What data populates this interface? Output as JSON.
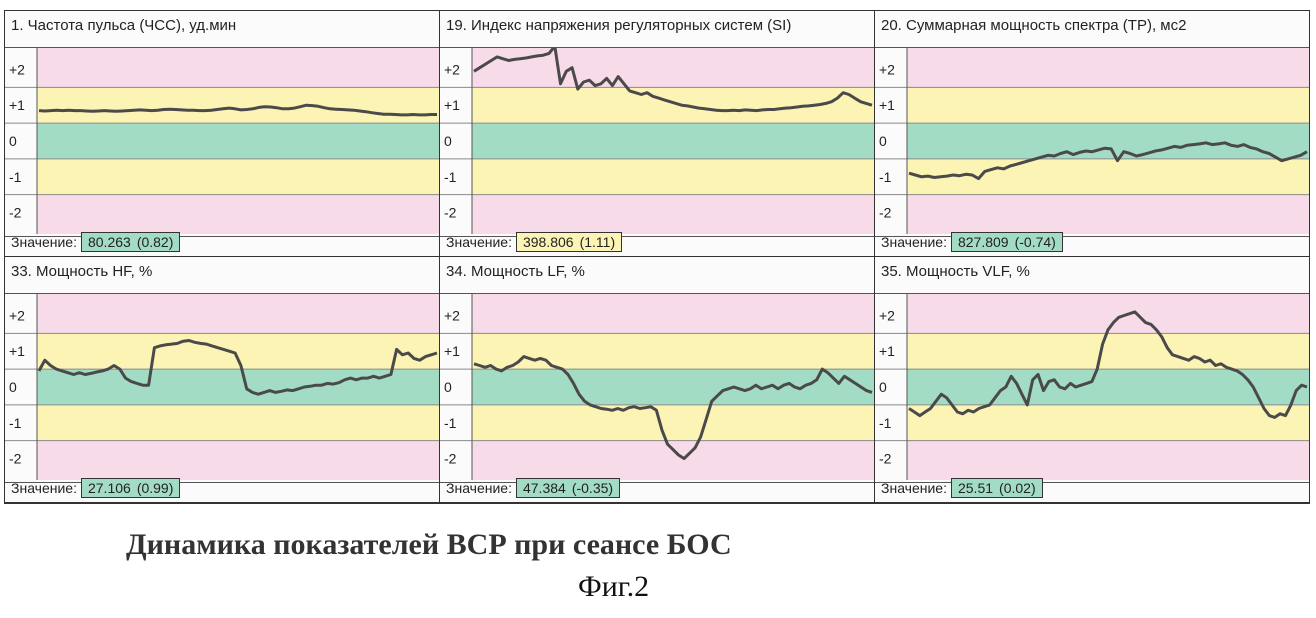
{
  "value_label": "Значение:",
  "colors": {
    "zone_green": "#a3dcc4",
    "zone_yellow": "#fbf4b4",
    "zone_pink": "#f8dbe9",
    "line": "#4a4a4a",
    "box_green": "#a3dcc4",
    "box_yellow": "#fbf4b4"
  },
  "caption": "Динамика показателей ВСР при сеансе БОС",
  "figure_label": "Фиг.2",
  "chart_data": [
    {
      "type": "line",
      "title": "1. Частота пульса (ЧСС), уд.мин",
      "y_ticks": [
        "+2",
        "+1",
        "0",
        "-1",
        "-2"
      ],
      "ylim": [
        -2.6,
        2.6
      ],
      "value": "80.263",
      "score": "(0.82)",
      "box_color": "green",
      "series": [
        {
          "values": [
            0.85,
            0.84,
            0.85,
            0.86,
            0.85,
            0.86,
            0.85,
            0.85,
            0.84,
            0.83,
            0.84,
            0.85,
            0.84,
            0.83,
            0.84,
            0.85,
            0.86,
            0.87,
            0.86,
            0.85,
            0.86,
            0.88,
            0.89,
            0.88,
            0.87,
            0.86,
            0.86,
            0.85,
            0.85,
            0.86,
            0.88,
            0.9,
            0.92,
            0.9,
            0.87,
            0.88,
            0.9,
            0.94,
            0.96,
            0.95,
            0.93,
            0.9,
            0.9,
            0.92,
            0.96,
            1.0,
            0.99,
            0.97,
            0.93,
            0.9,
            0.89,
            0.88,
            0.87,
            0.86,
            0.84,
            0.82,
            0.79,
            0.77,
            0.75,
            0.75,
            0.74,
            0.73,
            0.73,
            0.74,
            0.73,
            0.73,
            0.74,
            0.74
          ]
        }
      ]
    },
    {
      "type": "line",
      "title": "19. Индекс напряжения регуляторных систем (SI)",
      "y_ticks": [
        "+2",
        "+1",
        "0",
        "-1",
        "-2"
      ],
      "ylim": [
        -2.6,
        2.6
      ],
      "value": "398.806",
      "score": "(1.11)",
      "box_color": "yellow",
      "series": [
        {
          "values": [
            1.95,
            2.05,
            2.15,
            2.25,
            2.35,
            2.3,
            2.25,
            2.28,
            2.3,
            2.32,
            2.35,
            2.38,
            2.4,
            2.45,
            2.65,
            1.6,
            1.95,
            2.05,
            1.45,
            1.65,
            1.7,
            1.55,
            1.6,
            1.75,
            1.55,
            1.8,
            1.6,
            1.4,
            1.35,
            1.3,
            1.35,
            1.25,
            1.2,
            1.15,
            1.1,
            1.05,
            1.0,
            0.98,
            0.95,
            0.92,
            0.9,
            0.88,
            0.86,
            0.85,
            0.85,
            0.86,
            0.85,
            0.87,
            0.86,
            0.85,
            0.87,
            0.88,
            0.88,
            0.9,
            0.92,
            0.93,
            0.95,
            0.97,
            0.98,
            1.0,
            1.02,
            1.05,
            1.1,
            1.2,
            1.35,
            1.3,
            1.2,
            1.1,
            1.05,
            1.0
          ]
        }
      ]
    },
    {
      "type": "line",
      "title": "20. Суммарная мощность спектра (ТР), мс2",
      "y_ticks": [
        "+2",
        "+1",
        "0",
        "-1",
        "-2"
      ],
      "ylim": [
        -2.6,
        2.6
      ],
      "value": "827.809",
      "score": "(-0.74)",
      "box_color": "green",
      "series": [
        {
          "values": [
            -0.9,
            -0.95,
            -1.0,
            -0.98,
            -1.02,
            -1.0,
            -0.98,
            -0.95,
            -0.97,
            -0.93,
            -0.95,
            -1.05,
            -0.85,
            -0.8,
            -0.75,
            -0.78,
            -0.7,
            -0.65,
            -0.6,
            -0.55,
            -0.5,
            -0.45,
            -0.4,
            -0.42,
            -0.35,
            -0.3,
            -0.38,
            -0.32,
            -0.28,
            -0.3,
            -0.25,
            -0.2,
            -0.22,
            -0.55,
            -0.3,
            -0.35,
            -0.42,
            -0.38,
            -0.33,
            -0.28,
            -0.25,
            -0.2,
            -0.15,
            -0.18,
            -0.12,
            -0.1,
            -0.08,
            -0.05,
            -0.1,
            -0.08,
            -0.05,
            -0.12,
            -0.15,
            -0.1,
            -0.18,
            -0.22,
            -0.3,
            -0.35,
            -0.45,
            -0.55,
            -0.5,
            -0.45,
            -0.4,
            -0.3
          ]
        }
      ]
    },
    {
      "type": "line",
      "title": "33. Мощность HF, %",
      "y_ticks": [
        "+2",
        "+1",
        "0",
        "-1",
        "-2"
      ],
      "ylim": [
        -2.6,
        2.6
      ],
      "value": "27.106",
      "score": "(0.99)",
      "box_color": "green",
      "series": [
        {
          "values": [
            0.45,
            0.75,
            0.6,
            0.5,
            0.45,
            0.4,
            0.35,
            0.4,
            0.35,
            0.38,
            0.42,
            0.45,
            0.5,
            0.6,
            0.5,
            0.25,
            0.15,
            0.1,
            0.05,
            0.05,
            1.1,
            1.15,
            1.18,
            1.2,
            1.22,
            1.28,
            1.3,
            1.25,
            1.22,
            1.2,
            1.15,
            1.1,
            1.05,
            1.0,
            0.95,
            0.6,
            -0.05,
            -0.15,
            -0.2,
            -0.15,
            -0.1,
            -0.15,
            -0.12,
            -0.08,
            -0.1,
            -0.05,
            0.0,
            0.02,
            0.05,
            0.05,
            0.1,
            0.08,
            0.12,
            0.2,
            0.25,
            0.2,
            0.25,
            0.25,
            0.3,
            0.25,
            0.3,
            0.35,
            1.05,
            0.9,
            0.95,
            0.8,
            0.75,
            0.85,
            0.9,
            0.95
          ]
        }
      ]
    },
    {
      "type": "line",
      "title": "34. Мощность LF, %",
      "y_ticks": [
        "+2",
        "+1",
        "0",
        "-1",
        "-2"
      ],
      "ylim": [
        -2.6,
        2.6
      ],
      "value": "47.384",
      "score": "(-0.35)",
      "box_color": "green",
      "series": [
        {
          "values": [
            0.65,
            0.6,
            0.55,
            0.6,
            0.5,
            0.45,
            0.55,
            0.6,
            0.7,
            0.85,
            0.8,
            0.75,
            0.8,
            0.75,
            0.6,
            0.55,
            0.5,
            0.35,
            0.1,
            -0.2,
            -0.4,
            -0.5,
            -0.55,
            -0.6,
            -0.62,
            -0.65,
            -0.6,
            -0.65,
            -0.58,
            -0.55,
            -0.6,
            -0.58,
            -0.55,
            -0.65,
            -1.2,
            -1.6,
            -1.75,
            -1.9,
            -2.0,
            -1.85,
            -1.7,
            -1.4,
            -0.9,
            -0.4,
            -0.25,
            -0.1,
            -0.05,
            0.0,
            -0.05,
            -0.1,
            -0.05,
            0.05,
            -0.05,
            0.0,
            0.05,
            -0.05,
            0.05,
            0.1,
            0.0,
            -0.05,
            0.05,
            0.1,
            0.2,
            0.5,
            0.4,
            0.25,
            0.1,
            0.3,
            0.2,
            0.1,
            0.0,
            -0.1,
            -0.15
          ]
        }
      ]
    },
    {
      "type": "line",
      "title": "35. Мощность VLF, %",
      "y_ticks": [
        "+2",
        "+1",
        "0",
        "-1",
        "-2"
      ],
      "ylim": [
        -2.6,
        2.6
      ],
      "value": "25.51",
      "score": "(0.02)",
      "box_color": "green",
      "series": [
        {
          "values": [
            -0.6,
            -0.7,
            -0.8,
            -0.7,
            -0.6,
            -0.4,
            -0.2,
            -0.3,
            -0.5,
            -0.7,
            -0.75,
            -0.65,
            -0.7,
            -0.6,
            -0.55,
            -0.5,
            -0.3,
            -0.1,
            0.0,
            0.3,
            0.1,
            -0.2,
            -0.5,
            0.2,
            0.35,
            -0.1,
            0.15,
            0.2,
            0.0,
            -0.05,
            0.1,
            0.0,
            0.05,
            0.1,
            0.15,
            0.5,
            1.2,
            1.6,
            1.8,
            1.95,
            2.0,
            2.05,
            2.1,
            1.95,
            1.8,
            1.75,
            1.6,
            1.4,
            1.1,
            0.9,
            0.85,
            0.8,
            0.75,
            0.85,
            0.8,
            0.7,
            0.75,
            0.6,
            0.65,
            0.55,
            0.5,
            0.45,
            0.35,
            0.2,
            0.0,
            -0.3,
            -0.6,
            -0.8,
            -0.85,
            -0.75,
            -0.8,
            -0.5,
            -0.1,
            0.05,
            0.0
          ]
        }
      ]
    }
  ]
}
